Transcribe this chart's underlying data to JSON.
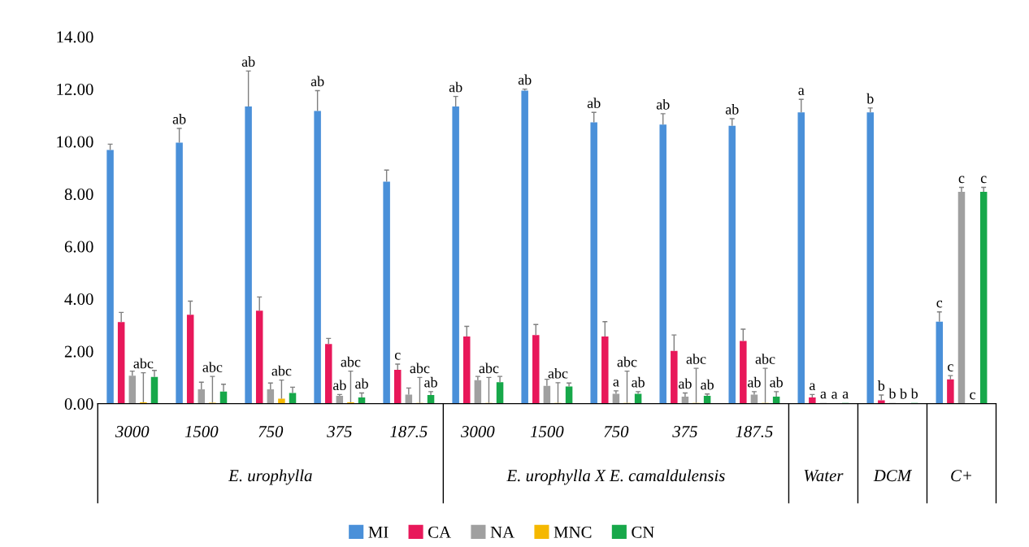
{
  "chart_data": {
    "type": "bar",
    "categories": [
      "3000",
      "1500",
      "750",
      "375",
      "187.5",
      "3000",
      "1500",
      "750",
      "375",
      "187.5",
      null,
      null,
      null
    ],
    "annotations": [
      "E. urophylla",
      "E. urophylla X E. camaldulensis",
      "Water",
      "DCM",
      "C+"
    ],
    "series": [
      {
        "name": "MI",
        "color": "#4a90d9",
        "values": [
          9.68,
          9.96,
          11.34,
          11.17,
          8.47,
          11.34,
          11.94,
          10.73,
          10.65,
          10.6,
          11.11,
          11.11,
          3.13
        ],
        "errors": [
          [
            9.68,
            9.9
          ],
          [
            9.96,
            10.5
          ],
          [
            11.34,
            12.69
          ],
          [
            11.17,
            11.94
          ],
          [
            8.47,
            8.91
          ],
          [
            11.34,
            11.72
          ],
          [
            11.94,
            12.0
          ],
          [
            10.73,
            11.11
          ],
          [
            10.65,
            11.06
          ],
          [
            10.6,
            10.87
          ],
          [
            11.11,
            11.61
          ],
          [
            11.11,
            11.28
          ],
          [
            3.13,
            3.5
          ]
        ],
        "value_labels": [
          null,
          "ab",
          "ab",
          "ab",
          null,
          "ab",
          "ab",
          "ab",
          "ab",
          "ab",
          "a",
          "b",
          "c"
        ]
      },
      {
        "name": "CA",
        "color": "#e8185a",
        "values": [
          3.11,
          3.39,
          3.55,
          2.28,
          1.29,
          2.56,
          2.62,
          2.56,
          2.01,
          2.39,
          0.24,
          0.13,
          0.93
        ],
        "errors": [
          [
            3.11,
            3.48
          ],
          [
            3.39,
            3.91
          ],
          [
            3.55,
            4.07
          ],
          [
            2.28,
            2.49
          ],
          [
            1.29,
            1.51
          ],
          [
            2.56,
            2.95
          ],
          [
            2.62,
            3.02
          ],
          [
            2.56,
            3.13
          ],
          [
            2.01,
            2.62
          ],
          [
            2.39,
            2.84
          ],
          [
            0.24,
            0.35
          ],
          [
            0.13,
            0.33
          ],
          [
            0.93,
            1.07
          ]
        ],
        "value_labels": [
          null,
          null,
          null,
          null,
          "c",
          null,
          null,
          null,
          null,
          null,
          "a",
          "b",
          "c"
        ]
      },
      {
        "name": "NA",
        "color": "#a0a0a0",
        "values": [
          1.07,
          0.55,
          0.55,
          0.3,
          0.35,
          0.9,
          0.68,
          0.38,
          0.27,
          0.35,
          0.03,
          0.03,
          8.08
        ],
        "errors": [
          [
            1.07,
            1.24
          ],
          [
            0.55,
            0.82
          ],
          [
            0.55,
            0.79
          ],
          [
            0.3,
            0.35
          ],
          [
            0.35,
            0.6
          ],
          [
            0.9,
            1.04
          ],
          [
            0.68,
            0.93
          ],
          [
            0.38,
            0.49
          ],
          [
            0.27,
            0.41
          ],
          [
            0.35,
            0.46
          ],
          null,
          null,
          [
            8.08,
            8.25
          ]
        ],
        "value_labels": [
          null,
          null,
          null,
          "ab",
          null,
          null,
          null,
          "a",
          "ab",
          "ab",
          "a",
          "b",
          "c"
        ]
      },
      {
        "name": "MNC",
        "color": "#f5b800",
        "values": [
          0.05,
          0.04,
          0.19,
          0.05,
          0.03,
          0.03,
          0.03,
          0.03,
          0.03,
          0.03,
          0.02,
          0.02,
          0.0
        ],
        "errors": [
          [
            0.05,
            1.18
          ],
          [
            0.04,
            1.04
          ],
          [
            0.19,
            0.9
          ],
          [
            0.05,
            1.24
          ],
          [
            0.03,
            1.0
          ],
          [
            0.03,
            1.0
          ],
          [
            0.03,
            0.8
          ],
          [
            0.03,
            1.24
          ],
          [
            0.03,
            1.35
          ],
          [
            0.03,
            1.35
          ],
          null,
          null,
          null
        ],
        "value_labels": [
          "abc",
          "abc",
          "abc",
          "abc",
          "abc",
          "abc",
          "abc",
          "abc",
          "abc",
          "abc",
          "a",
          "b",
          "c"
        ]
      },
      {
        "name": "CN",
        "color": "#17a84a",
        "values": [
          1.02,
          0.46,
          0.41,
          0.24,
          0.33,
          0.82,
          0.66,
          0.38,
          0.3,
          0.27,
          0.03,
          0.03,
          8.08
        ],
        "errors": [
          [
            1.02,
            1.27
          ],
          [
            0.46,
            0.74
          ],
          [
            0.41,
            0.63
          ],
          [
            0.24,
            0.41
          ],
          [
            0.33,
            0.46
          ],
          [
            0.82,
            1.04
          ],
          [
            0.66,
            0.79
          ],
          [
            0.38,
            0.46
          ],
          [
            0.3,
            0.37
          ],
          [
            0.27,
            0.46
          ],
          null,
          null,
          [
            8.08,
            8.25
          ]
        ],
        "value_labels": [
          null,
          null,
          null,
          "ab",
          "ab",
          null,
          null,
          "ab",
          "ab",
          "ab",
          "a",
          "b",
          "c"
        ]
      }
    ],
    "ylim": [
      0,
      14
    ],
    "yticks": [
      {
        "value": 0,
        "label": "0.00"
      },
      {
        "value": 2,
        "label": "2.00"
      },
      {
        "value": 4,
        "label": "4.00"
      },
      {
        "value": 6,
        "label": "6.00"
      },
      {
        "value": 8,
        "label": "8.00"
      },
      {
        "value": 10,
        "label": "10.00"
      },
      {
        "value": 12,
        "label": "12.00"
      },
      {
        "value": 14,
        "label": "14.00"
      }
    ],
    "legend": "bottom"
  }
}
